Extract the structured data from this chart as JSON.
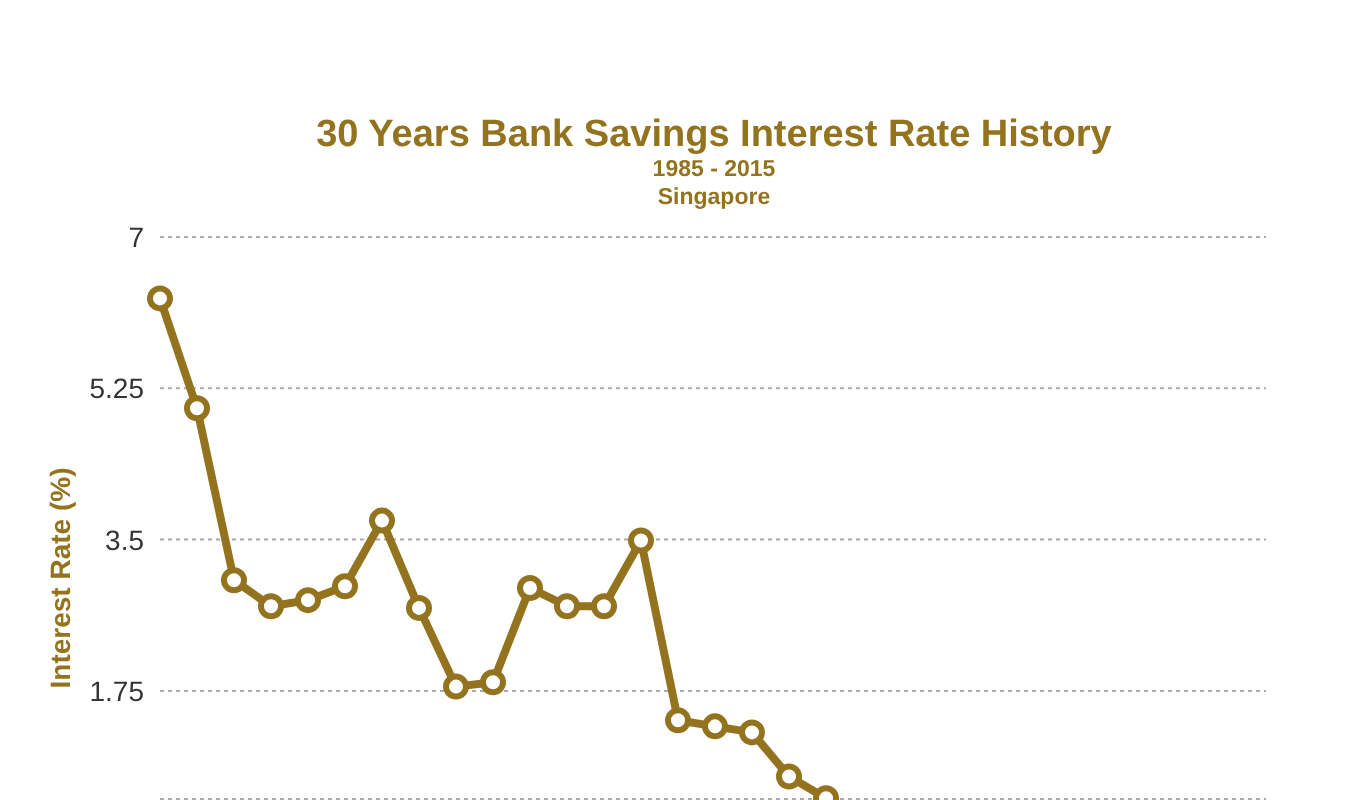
{
  "chart_data": {
    "type": "line",
    "title": "30 Years Bank Savings Interest Rate History",
    "subtitle": "1985 - 2015\nSingapore",
    "ylabel": "Interest Rate (%)",
    "categories": [
      null,
      null,
      null,
      null,
      null,
      null,
      null,
      null,
      null,
      null,
      null,
      null,
      null,
      null,
      null,
      null,
      null,
      null,
      null
    ],
    "series": [
      {
        "color": "#94731f",
        "values": [
          6.29,
          5.02,
          3.03,
          2.73,
          2.8,
          2.96,
          3.72,
          2.71,
          1.8,
          1.85,
          2.94,
          2.73,
          2.73,
          3.49,
          1.41,
          1.34,
          1.27,
          0.76,
          0.51
        ]
      }
    ],
    "ylim": [
      0.5,
      7
    ],
    "yticks": [
      1.75,
      3.5,
      5.25,
      7
    ],
    "grid": "y",
    "marker": "circle",
    "line_style": "solid",
    "tick_labels": "y"
  }
}
